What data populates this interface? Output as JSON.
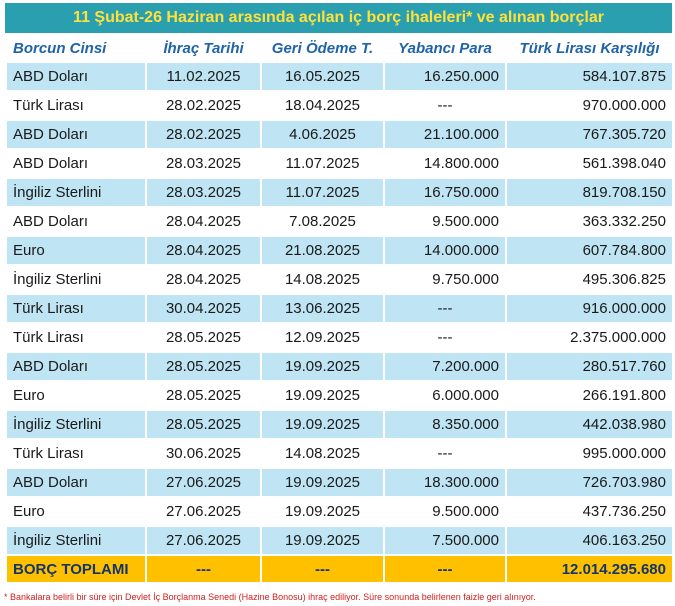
{
  "title": "11 Şubat-26 Haziran arasında açılan iç borç ihaleleri* ve alınan borçlar",
  "table": {
    "header": [
      "Borcun Cinsi",
      "İhraç Tarihi",
      "Geri Ödeme T.",
      "Yabancı Para",
      "Türk Lirası Karşılığı"
    ],
    "rows": [
      [
        "ABD Doları",
        "11.02.2025",
        "16.05.2025",
        "16.250.000",
        "584.107.875"
      ],
      [
        "Türk Lirası",
        "28.02.2025",
        "18.04.2025",
        "---",
        "970.000.000"
      ],
      [
        "ABD Doları",
        "28.02.2025",
        "4.06.2025",
        "21.100.000",
        "767.305.720"
      ],
      [
        "ABD Doları",
        "28.03.2025",
        "11.07.2025",
        "14.800.000",
        "561.398.040"
      ],
      [
        "İngiliz Sterlini",
        "28.03.2025",
        "11.07.2025",
        "16.750.000",
        "819.708.150"
      ],
      [
        "ABD Doları",
        "28.04.2025",
        "7.08.2025",
        "9.500.000",
        "363.332.250"
      ],
      [
        "Euro",
        "28.04.2025",
        "21.08.2025",
        "14.000.000",
        "607.784.800"
      ],
      [
        "İngiliz Sterlini",
        "28.04.2025",
        "14.08.2025",
        "9.750.000",
        "495.306.825"
      ],
      [
        "Türk Lirası",
        "30.04.2025",
        "13.06.2025",
        "---",
        "916.000.000"
      ],
      [
        "Türk Lirası",
        "28.05.2025",
        "12.09.2025",
        "---",
        "2.375.000.000"
      ],
      [
        "ABD Doları",
        "28.05.2025",
        "19.09.2025",
        "7.200.000",
        "280.517.760"
      ],
      [
        "Euro",
        "28.05.2025",
        "19.09.2025",
        "6.000.000",
        "266.191.800"
      ],
      [
        "İngiliz Sterlini",
        "28.05.2025",
        "19.09.2025",
        "8.350.000",
        "442.038.980"
      ],
      [
        "Türk Lirası",
        "30.06.2025",
        "14.08.2025",
        "---",
        "995.000.000"
      ],
      [
        "ABD Doları",
        "27.06.2025",
        "19.09.2025",
        "18.300.000",
        "726.703.980"
      ],
      [
        "Euro",
        "27.06.2025",
        "19.09.2025",
        "9.500.000",
        "437.736.250"
      ],
      [
        "İngiliz Sterlini",
        "27.06.2025",
        "19.09.2025",
        "7.500.000",
        "406.163.250"
      ]
    ],
    "total": [
      "BORÇ TOPLAMI",
      "---",
      "---",
      "---",
      "12.014.295.680"
    ]
  },
  "footnote": "* Bankalara belirli bir süre için Devlet İç Borçlanma Senedi (Hazine Bonosu) ihraç ediliyor. Süre sonunda belirlenen faizle geri alınıyor."
}
